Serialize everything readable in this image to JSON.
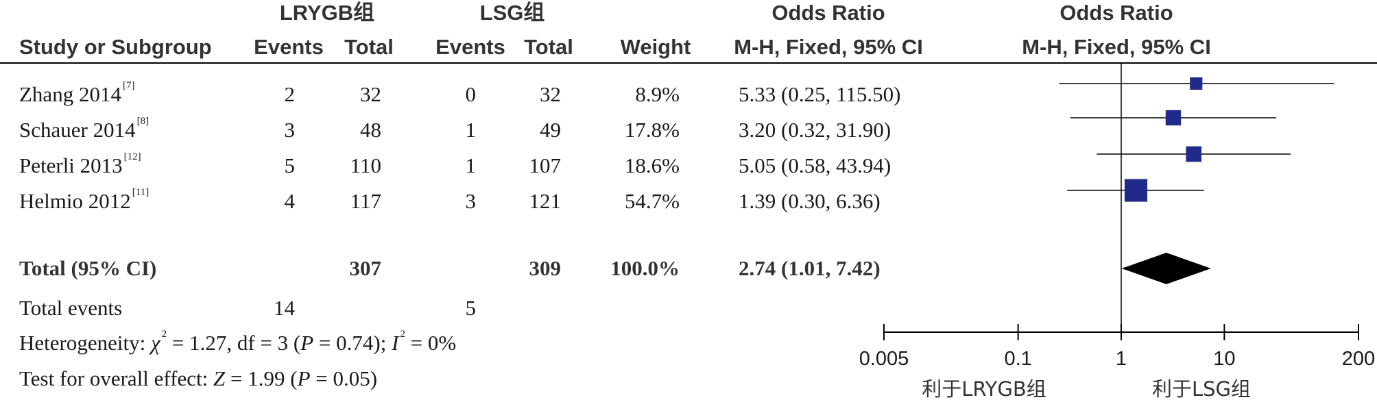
{
  "headers": {
    "group1": "LRYGB组",
    "group2": "LSG组",
    "or_top_left": "Odds Ratio",
    "or_top_right": "Odds Ratio",
    "study": "Study or Subgroup",
    "events1": "Events",
    "total1": "Total",
    "events2": "Events",
    "total2": "Total",
    "weight": "Weight",
    "method_left": "M-H, Fixed, 95% CI",
    "method_right": "M-H, Fixed, 95% CI"
  },
  "studies": [
    {
      "name": "Zhang 2014",
      "ref": "[7]",
      "events1": "2",
      "total1": "32",
      "events2": "0",
      "total2": "32",
      "weight": "8.9%",
      "ci": "5.33 (0.25, 115.50)"
    },
    {
      "name": "Schauer 2014",
      "ref": "[8]",
      "events1": "3",
      "total1": "48",
      "events2": "1",
      "total2": "49",
      "weight": "17.8%",
      "ci": "3.20 (0.32, 31.90)"
    },
    {
      "name": "Peterli 2013",
      "ref": "[12]",
      "events1": "5",
      "total1": "110",
      "events2": "1",
      "total2": "107",
      "weight": "18.6%",
      "ci": "5.05 (0.58, 43.94)"
    },
    {
      "name": "Helmio 2012",
      "ref": "[11]",
      "events1": "4",
      "total1": "117",
      "events2": "3",
      "total2": "121",
      "weight": "54.7%",
      "ci": "1.39 (0.30, 6.36)"
    }
  ],
  "total": {
    "label": "Total (95% CI)",
    "total1": "307",
    "total2": "309",
    "weight": "100.0%",
    "ci": "2.74 (1.01, 7.42)"
  },
  "total_events": {
    "label": "Total events",
    "events1": "14",
    "events2": "5"
  },
  "heterogeneity": {
    "label": "Heterogeneity: ",
    "chi_sym": "χ",
    "chi_part": " = 1.27, df = 3 (",
    "p_sym": "P",
    "p_part": " = 0.74); ",
    "i_sym": "I",
    "i_part": " = 0%"
  },
  "overall": {
    "label": "Test for overall effect: ",
    "z_sym": "Z",
    "z_part": " = 1.99 (",
    "p_sym": "P",
    "p_part": " = 0.05)"
  },
  "axis": {
    "ticks": [
      "0.005",
      "0.1",
      "1",
      "10",
      "200"
    ],
    "favours_left": "利于LRYGB组",
    "favours_right": "利于LSG组"
  },
  "colors": {
    "marker": "#1f2a8a",
    "diamond": "#000000",
    "line": "#000000"
  },
  "chart_data": {
    "type": "forest",
    "scale": "log",
    "xlim": [
      0.005,
      200
    ],
    "null_value": 1,
    "studies": [
      {
        "name": "Zhang 2014",
        "or": 5.33,
        "ci_low": 0.25,
        "ci_high": 115.5,
        "weight": 8.9
      },
      {
        "name": "Schauer 2014",
        "or": 3.2,
        "ci_low": 0.32,
        "ci_high": 31.9,
        "weight": 17.8
      },
      {
        "name": "Peterli 2013",
        "or": 5.05,
        "ci_low": 0.58,
        "ci_high": 43.94,
        "weight": 18.6
      },
      {
        "name": "Helmio 2012",
        "or": 1.39,
        "ci_low": 0.3,
        "ci_high": 6.36,
        "weight": 54.7
      }
    ],
    "pooled": {
      "or": 2.74,
      "ci_low": 1.01,
      "ci_high": 7.42
    }
  }
}
